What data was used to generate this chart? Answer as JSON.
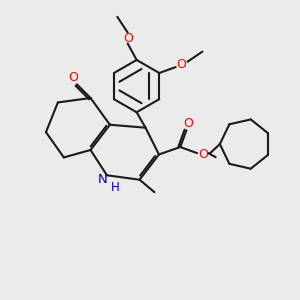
{
  "background_color": "#ebebeb",
  "bond_color": "#1a1a1a",
  "oxygen_color": "#ff0000",
  "nitrogen_color": "#0000cc",
  "figsize": [
    3.0,
    3.0
  ],
  "dpi": 100,
  "xlim": [
    0,
    10
  ],
  "ylim": [
    0,
    10
  ]
}
